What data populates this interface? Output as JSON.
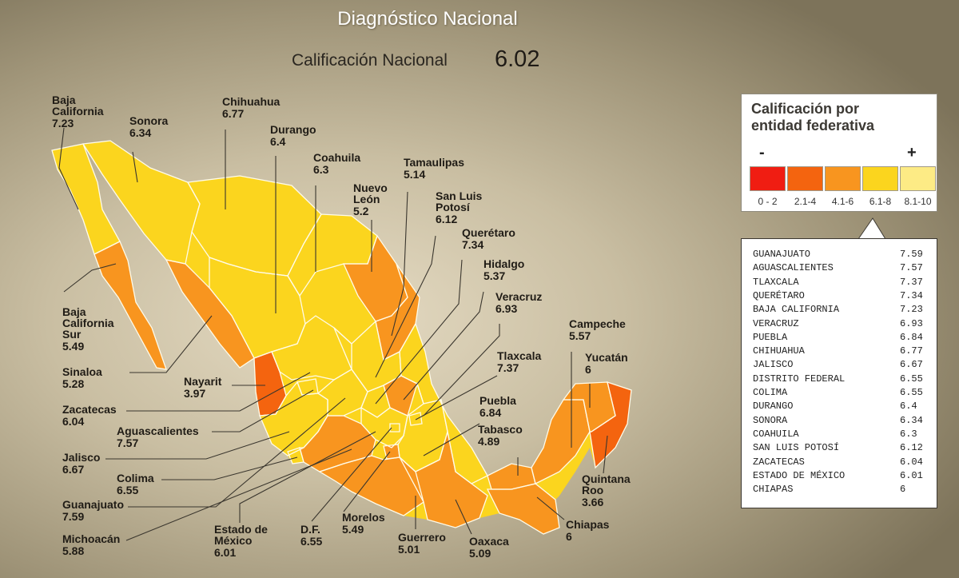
{
  "header": {
    "title": "Diagnóstico Nacional",
    "national_label": "Calificación Nacional",
    "national_value": "6.02"
  },
  "colors": {
    "range_0_2": "#f01d12",
    "range_2_4": "#f4640f",
    "range_4_6": "#f8951f",
    "range_6_8": "#fbd51e",
    "range_8_10": "#fdeb85",
    "border": "#fffbe8"
  },
  "map": {
    "states": [
      {
        "name": "Baja California",
        "value": "7.23"
      },
      {
        "name": "Baja California Sur",
        "value": "5.49"
      },
      {
        "name": "Sonora",
        "value": "6.34"
      },
      {
        "name": "Chihuahua",
        "value": "6.77"
      },
      {
        "name": "Coahuila",
        "value": "6.3"
      },
      {
        "name": "Nuevo León",
        "value": "5.2"
      },
      {
        "name": "Tamaulipas",
        "value": "5.14"
      },
      {
        "name": "Sinaloa",
        "value": "5.28"
      },
      {
        "name": "Durango",
        "value": "6.4"
      },
      {
        "name": "Zacatecas",
        "value": "6.04"
      },
      {
        "name": "Nayarit",
        "value": "3.97"
      },
      {
        "name": "Aguascalientes",
        "value": "7.57"
      },
      {
        "name": "San Luis Potosí",
        "value": "6.12"
      },
      {
        "name": "Jalisco",
        "value": "6.67"
      },
      {
        "name": "Colima",
        "value": "6.55"
      },
      {
        "name": "Guanajuato",
        "value": "7.59"
      },
      {
        "name": "Querétaro",
        "value": "7.34"
      },
      {
        "name": "Hidalgo",
        "value": "5.37"
      },
      {
        "name": "Michoacán",
        "value": "5.88"
      },
      {
        "name": "Estado de México",
        "value": "6.01"
      },
      {
        "name": "D.F.",
        "value": "6.55"
      },
      {
        "name": "Morelos",
        "value": "5.49"
      },
      {
        "name": "Tlaxcala",
        "value": "7.37"
      },
      {
        "name": "Puebla",
        "value": "6.84"
      },
      {
        "name": "Veracruz",
        "value": "6.93"
      },
      {
        "name": "Guerrero",
        "value": "5.01"
      },
      {
        "name": "Oaxaca",
        "value": "5.09"
      },
      {
        "name": "Tabasco",
        "value": "4.89"
      },
      {
        "name": "Chiapas",
        "value": "6"
      },
      {
        "name": "Campeche",
        "value": "5.57"
      },
      {
        "name": "Yucatán",
        "value": "6"
      },
      {
        "name": "Quintana Roo",
        "value": "3.66"
      }
    ]
  },
  "legend": {
    "title_line1": "Calificación por",
    "title_line2": "entidad federativa",
    "minus": "-",
    "plus": "+",
    "ranges": [
      "0 - 2",
      "2.1-4",
      "4.1-6",
      "6.1-8",
      "8.1-10"
    ]
  },
  "ranking": [
    {
      "name": "GUANAJUATO",
      "value": "7.59"
    },
    {
      "name": "AGUASCALIENTES",
      "value": "7.57"
    },
    {
      "name": "TLAXCALA",
      "value": "7.37"
    },
    {
      "name": "QUERÉTARO",
      "value": "7.34"
    },
    {
      "name": "BAJA CALIFORNIA",
      "value": "7.23"
    },
    {
      "name": "VERACRUZ",
      "value": "6.93"
    },
    {
      "name": "PUEBLA",
      "value": "6.84"
    },
    {
      "name": "CHIHUAHUA",
      "value": "6.77"
    },
    {
      "name": "JALISCO",
      "value": "6.67"
    },
    {
      "name": "DISTRITO FEDERAL",
      "value": "6.55"
    },
    {
      "name": "COLIMA",
      "value": "6.55"
    },
    {
      "name": "DURANGO",
      "value": "6.4"
    },
    {
      "name": "SONORA",
      "value": "6.34"
    },
    {
      "name": "COAHUILA",
      "value": "6.3"
    },
    {
      "name": "SAN LUIS POTOSÍ",
      "value": "6.12"
    },
    {
      "name": "ZACATECAS",
      "value": "6.04"
    },
    {
      "name": "ESTADO DE MÉXICO",
      "value": "6.01"
    },
    {
      "name": "CHIAPAS",
      "value": "6"
    }
  ]
}
